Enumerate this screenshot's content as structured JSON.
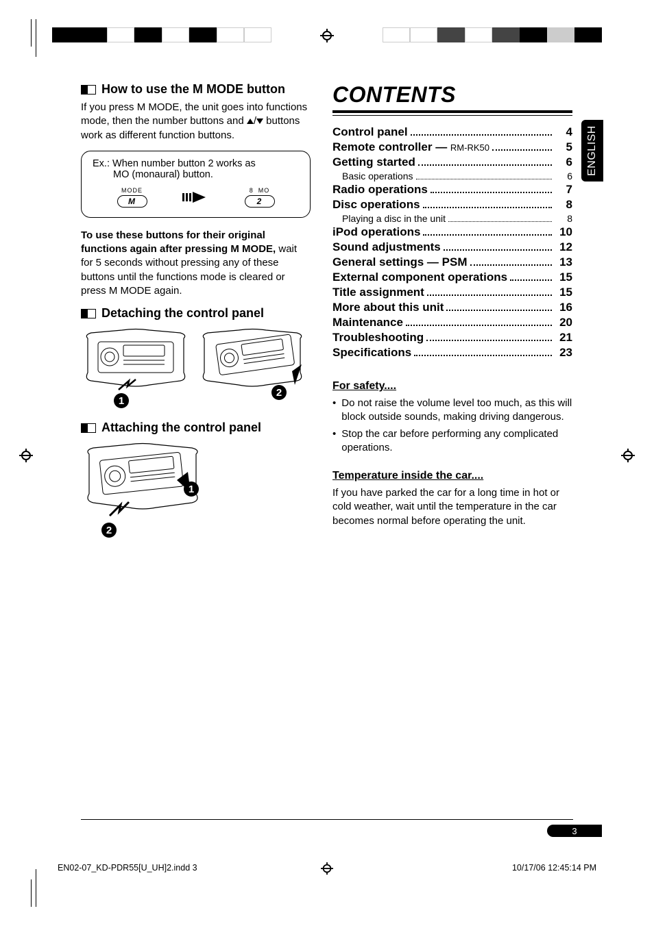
{
  "left": {
    "mmode_title": "How to use the M MODE button",
    "mmode_body_1": "If you press M MODE, the unit goes into functions mode, then the number buttons and ",
    "mmode_body_2": " buttons work as different function buttons.",
    "ex_line1": "Ex.:  When number button 2 works as",
    "ex_line2": "MO (monaural) button.",
    "btn_mode_label": "MODE",
    "btn_mode_letter": "M",
    "btn2_label_a": "8",
    "btn2_label_b": "MO",
    "btn2_num": "2",
    "note_bold": "To use these buttons for their original functions again after pressing M MODE,",
    "note_rest": " wait for 5 seconds without pressing any of these buttons until the functions mode is cleared or press M MODE again.",
    "detach_title": "Detaching the control panel",
    "attach_title": "Attaching the control panel"
  },
  "contents_title": "CONTENTS",
  "toc": [
    {
      "label": "Control panel",
      "page": "4"
    },
    {
      "label": "Remote controller — ",
      "sublabel": "RM-RK50",
      "page": "5"
    },
    {
      "label": "Getting started",
      "page": "6"
    },
    {
      "label": "Basic operations",
      "page": "6",
      "sub": true
    },
    {
      "label": "Radio operations",
      "page": "7"
    },
    {
      "label": "Disc operations",
      "page": "8"
    },
    {
      "label": "Playing a disc in the unit",
      "page": "8",
      "sub": true
    },
    {
      "label": "iPod operations",
      "page": "10"
    },
    {
      "label": "Sound adjustments",
      "page": "12"
    },
    {
      "label": "General settings — PSM",
      "page": "13"
    },
    {
      "label": "External component operations",
      "page": "15"
    },
    {
      "label": "Title assignment",
      "page": "15"
    },
    {
      "label": "More about this unit",
      "page": "16"
    },
    {
      "label": "Maintenance",
      "page": "20"
    },
    {
      "label": "Troubleshooting",
      "page": "21"
    },
    {
      "label": "Specifications",
      "page": "23"
    }
  ],
  "lang_tab": "ENGLISH",
  "safety": {
    "head1": "For safety....",
    "b1": "Do not raise the volume level too much, as this will block outside sounds, making driving dangerous.",
    "b2": "Stop the car before performing any complicated operations.",
    "head2": "Temperature inside the car....",
    "p2": "If you have parked the car for a long time in hot or cold weather, wait until the temperature in the car becomes normal before operating the unit."
  },
  "page_number": "3",
  "footer_left": "EN02-07_KD-PDR55[U_UH]2.indd   3",
  "footer_right": "10/17/06   12:45:14 PM"
}
